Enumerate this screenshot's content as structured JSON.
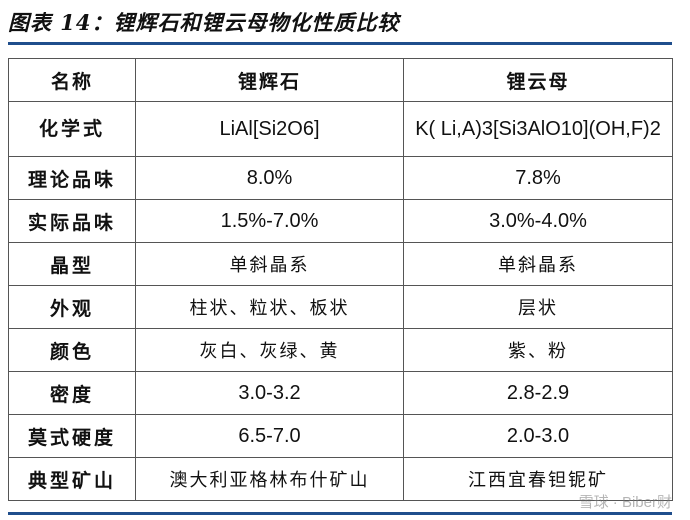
{
  "title": "图表 14：锂辉石和锂云母物化性质比较",
  "headers": [
    "名称",
    "锂辉石",
    "锂云母"
  ],
  "rows": [
    {
      "label": "化学式",
      "a": "LiAl[Si2O6]",
      "b": "K( Li,A)3[Si3AlO10](OH,F)2"
    },
    {
      "label": "理论品味",
      "a": "8.0%",
      "b": "7.8%"
    },
    {
      "label": "实际品味",
      "a": "1.5%-7.0%",
      "b": "3.0%-4.0%"
    },
    {
      "label": "晶型",
      "a": "单斜晶系",
      "b": "单斜晶系"
    },
    {
      "label": "外观",
      "a": "柱状、粒状、板状",
      "b": "层状"
    },
    {
      "label": "颜色",
      "a": "灰白、灰绿、黄",
      "b": "紫、粉"
    },
    {
      "label": "密度",
      "a": "3.0-3.2",
      "b": "2.8-2.9"
    },
    {
      "label": "莫式硬度",
      "a": "6.5-7.0",
      "b": "2.0-3.0"
    },
    {
      "label": "典型矿山",
      "a": "澳大利亚格林布什矿山",
      "b": "江西宜春钽铌矿"
    }
  ],
  "watermark": "雪球 · Biber财",
  "colors": {
    "rule": "#1f4e8c",
    "border": "#555555"
  }
}
